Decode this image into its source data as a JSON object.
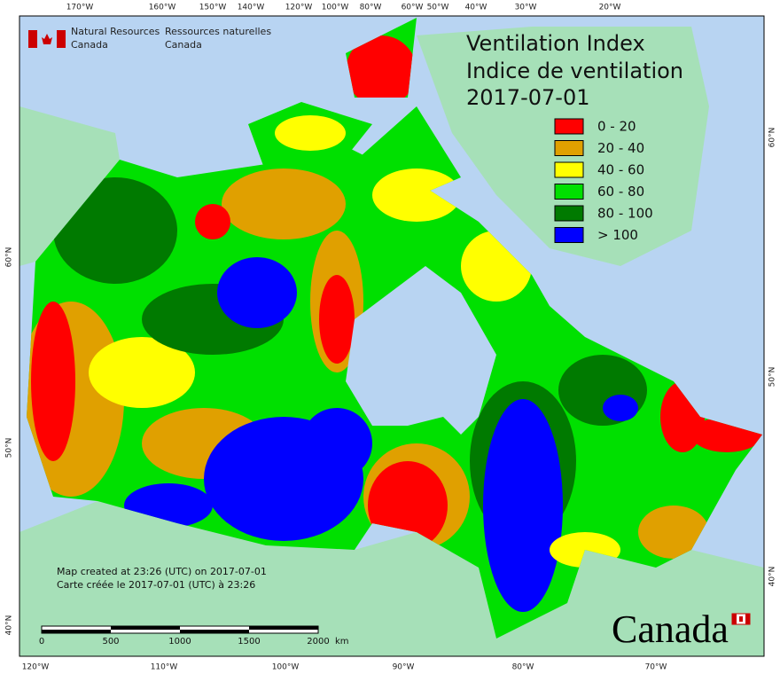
{
  "header": {
    "org_en": [
      "Natural Resources",
      "Canada"
    ],
    "org_fr": [
      "Ressources naturelles",
      "Canada"
    ]
  },
  "title": [
    "Ventilation Index",
    "Indice de ventilation",
    "2017-07-01"
  ],
  "legend": [
    {
      "label": "0 - 20",
      "color": "#ff0000"
    },
    {
      "label": "20 - 40",
      "color": "#e0a000"
    },
    {
      "label": "40 - 60",
      "color": "#ffff00"
    },
    {
      "label": "60 - 80",
      "color": "#00e000"
    },
    {
      "label": "80 - 100",
      "color": "#007a00"
    },
    {
      "label": "> 100",
      "color": "#0000ff"
    }
  ],
  "top_ticks": [
    "170°W",
    "160°W",
    "150°W",
    "140°W",
    "120°W",
    "100°W",
    "80°W",
    "60°W",
    "50°W",
    "40°W",
    "30°W",
    "20°W"
  ],
  "bottom_ticks": [
    "120°W",
    "110°W",
    "100°W",
    "90°W",
    "80°W",
    "70°W"
  ],
  "left_ticks": [
    "60°N",
    "50°N",
    "40°N"
  ],
  "right_ticks": [
    "60°N",
    "50°N",
    "40°N"
  ],
  "footer": [
    "Map created at 23:26 (UTC) on 2017-07-01",
    "Carte créée le 2017-07-01 (UTC) à 23:26"
  ],
  "scale": {
    "labels": [
      "0",
      "500",
      "1000",
      "1500",
      "2000"
    ],
    "unit": "km"
  },
  "wordmark": "Canada"
}
